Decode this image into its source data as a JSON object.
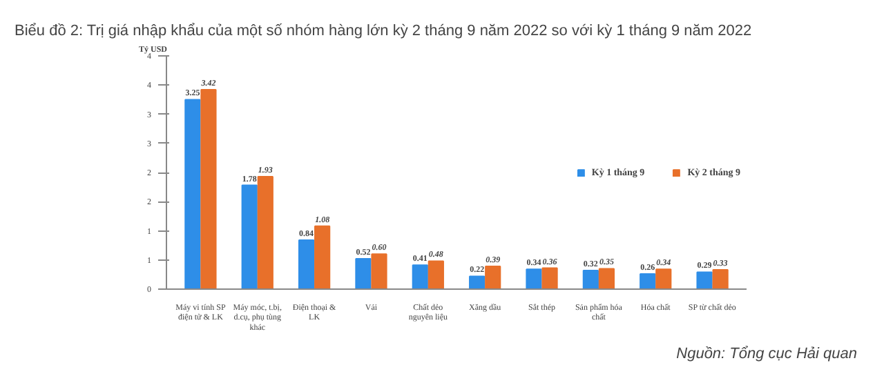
{
  "chart_data": {
    "type": "bar",
    "title": "Biểu đồ 2: Trị giá nhập khẩu của một số nhóm hàng lớn kỳ 2 tháng 9 năm 2022 so với kỳ 1 tháng 9 năm 2022",
    "ylabel": "Tỷ USD",
    "categories": [
      "Máy vi tính SP điện tử & LK",
      "Máy móc, t.bị, d.cụ, phụ tùng khác",
      "Điện thoại & LK",
      "Vải",
      "Chất dẻo nguyên liệu",
      "Xăng dầu",
      "Sắt thép",
      "Sản phẩm hóa chất",
      "Hóa chất",
      "SP từ chất dẻo"
    ],
    "series": [
      {
        "name": "Kỳ 1 tháng 9",
        "color": "#2e8ee8",
        "values": [
          3.25,
          1.78,
          0.84,
          0.52,
          0.41,
          0.22,
          0.34,
          0.32,
          0.26,
          0.29
        ],
        "value_labels": [
          "3.25",
          "1.78",
          "0.84",
          "0.52",
          "0.41",
          "0.22",
          "0.34",
          "0.32",
          "0.26",
          "0.29"
        ]
      },
      {
        "name": "Kỳ 2 tháng 9",
        "color": "#e8702a",
        "values": [
          3.42,
          1.93,
          1.08,
          0.6,
          0.48,
          0.39,
          0.36,
          0.35,
          0.34,
          0.33
        ],
        "value_labels": [
          "3.42",
          "1.93",
          "1.08",
          "0.60",
          "0.48",
          "0.39",
          "0.36",
          "0.35",
          "0.34",
          "0.33"
        ]
      }
    ],
    "ylim": [
      0,
      4
    ],
    "yticks": [
      0,
      {
        "value": 0.5,
        "label": "1"
      },
      1,
      {
        "value": 1.5,
        "label": "2"
      },
      2,
      {
        "value": 2.5,
        "label": "3"
      },
      3,
      {
        "value": 3.5,
        "label": "4"
      },
      4
    ],
    "grid": false,
    "legend": "right",
    "annotations": [
      "Nguồn: Tổng cục Hải quan"
    ]
  }
}
